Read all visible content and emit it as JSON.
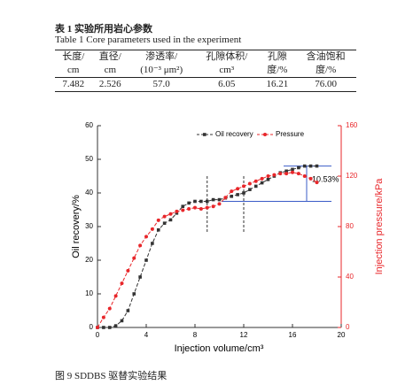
{
  "table_caption_cn": "表 1 实验所用岩心参数",
  "table_caption_en": "Table 1 Core parameters used in the experiment",
  "table": {
    "header_rows": [
      [
        "长度/",
        "直径/",
        "渗透率/",
        "孔隙体积/",
        "孔隙",
        "含油饱和"
      ],
      [
        "cm",
        "cm",
        "(10⁻³ μm²)",
        "cm³",
        "度/%",
        "度/%"
      ]
    ],
    "rows": [
      [
        "7.482",
        "2.526",
        "57.0",
        "6.05",
        "16.21",
        "76.00"
      ]
    ]
  },
  "chart_data": {
    "type": "line",
    "x_label": "Injection volume/cm³",
    "y_label": "Oil recovery/%",
    "y2_label": "Injection pressure/kPa",
    "x": [
      0,
      0.5,
      1,
      1.5,
      2,
      2.5,
      3,
      3.5,
      4,
      4.5,
      5,
      5.5,
      6,
      6.5,
      7,
      7.5,
      8,
      8.5,
      9,
      9.5,
      10,
      10.5,
      11,
      11.5,
      12,
      12.5,
      13,
      13.5,
      14,
      14.5,
      15,
      15.5,
      16,
      16.5,
      17,
      17.5,
      18
    ],
    "series": [
      {
        "name": "Oil recovery",
        "color": "#333333",
        "marker": "square",
        "values": [
          0,
          0,
          0,
          0.5,
          2,
          5,
          10,
          15,
          20,
          25,
          29,
          31,
          32,
          34,
          36,
          37,
          37.5,
          37.5,
          37.5,
          38,
          38,
          38.5,
          39,
          39.5,
          40,
          41,
          42,
          43,
          44,
          45,
          46,
          46.5,
          47,
          47.5,
          48,
          48,
          48
        ]
      },
      {
        "name": "Pressure",
        "color": "#e8262a",
        "marker": "circle",
        "axis": "y2",
        "values": [
          0,
          8,
          15,
          25,
          35,
          45,
          55,
          65,
          72,
          78,
          85,
          88,
          90,
          92,
          93,
          94,
          95,
          94,
          95,
          96,
          98,
          103,
          108,
          110,
          112,
          114,
          116,
          118,
          120,
          121,
          122,
          122,
          123,
          122,
          120,
          118,
          115
        ]
      }
    ],
    "xlim": [
      0,
      20
    ],
    "xticks": [
      0,
      4,
      8,
      12,
      16,
      20
    ],
    "ylim": [
      0,
      60
    ],
    "yticks": [
      0,
      10,
      20,
      30,
      40,
      50,
      60
    ],
    "y2lim": [
      0,
      160
    ],
    "y2ticks": [
      0,
      40,
      80,
      120,
      160
    ],
    "reference_lines": {
      "x": [
        9,
        12
      ],
      "y": [
        37.5,
        48
      ]
    },
    "annotation": "10.53%"
  },
  "figure_caption": "图 9 SDDBS 驱替实验结果"
}
